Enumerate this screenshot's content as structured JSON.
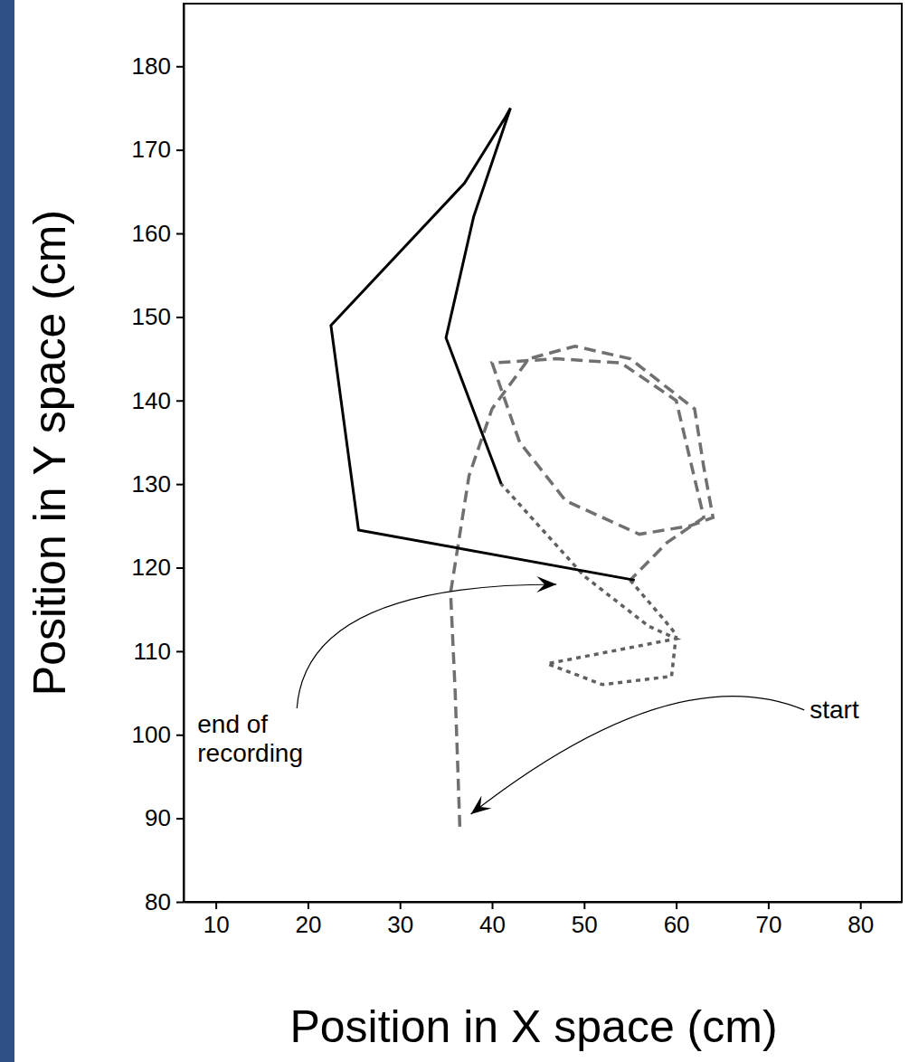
{
  "chart_data": {
    "type": "line",
    "x_label": "Position in X space (cm)",
    "y_label": "Position in Y space (cm)",
    "xlim": [
      6.5,
      84.5
    ],
    "ylim": [
      80,
      187.5
    ],
    "xticks": [
      10,
      20,
      30,
      40,
      50,
      60,
      70,
      80
    ],
    "yticks": [
      80,
      90,
      100,
      110,
      120,
      130,
      140,
      150,
      160,
      170,
      180
    ],
    "grid": false,
    "series": [
      {
        "color": "#707070",
        "line_style": "dashed",
        "x": [
          36.5,
          36,
          35.5,
          37.5,
          40,
          44,
          49,
          55,
          62,
          63,
          64,
          61.5,
          56,
          48,
          43,
          40,
          47,
          54,
          60,
          63,
          59,
          55
        ],
        "values": [
          89,
          105,
          117,
          131,
          139,
          145,
          146.5,
          145,
          139,
          132,
          126,
          125,
          124,
          128,
          135,
          144.5,
          145,
          144.5,
          140,
          126,
          123,
          118.5
        ]
      },
      {
        "color": "#606060",
        "line_style": "dotted",
        "x": [
          55,
          58.5,
          60,
          59.5,
          52,
          46,
          60,
          57,
          50,
          41
        ],
        "values": [
          118.5,
          114,
          112,
          107,
          106,
          108.5,
          111.5,
          113,
          119,
          130
        ]
      },
      {
        "color": "#000000",
        "line_style": "solid",
        "x": [
          41,
          35,
          38,
          42,
          41.5,
          37,
          22.5,
          25.5,
          55.5
        ],
        "values": [
          130,
          147.5,
          162,
          175,
          174,
          166,
          149,
          124.5,
          118.5
        ]
      }
    ],
    "annotations": [
      {
        "text": "start",
        "x": 37.7,
        "y": 90.5,
        "text_x": 74.5,
        "text_y": 103
      },
      {
        "text": "end of\nrecording",
        "x": 47,
        "y": 118,
        "text_x": 8,
        "text_y": 101.3
      }
    ]
  }
}
